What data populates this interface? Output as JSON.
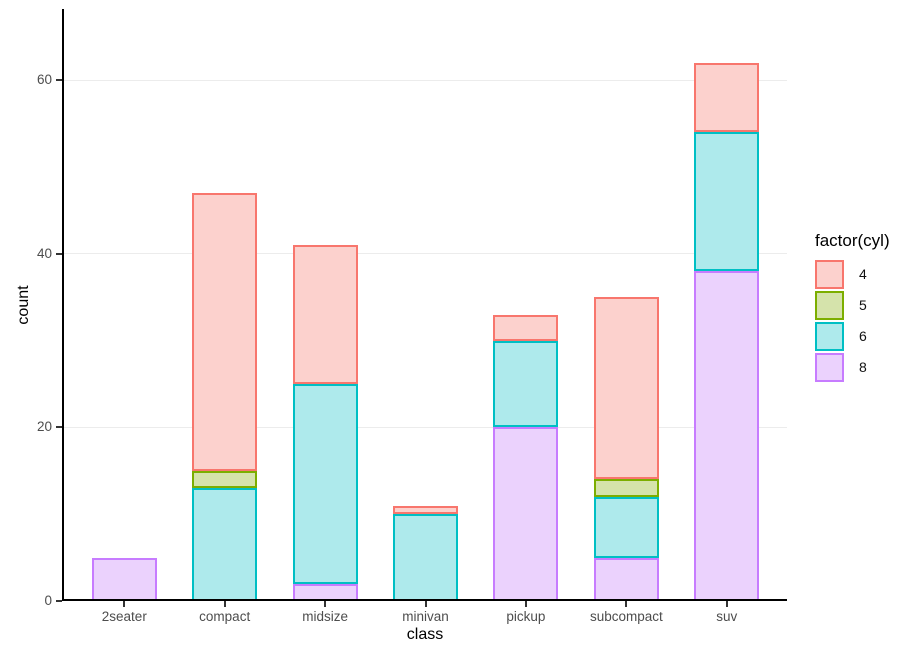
{
  "chart_data": {
    "type": "bar",
    "stacked": true,
    "xlabel": "class",
    "ylabel": "count",
    "categories": [
      "2seater",
      "compact",
      "midsize",
      "minivan",
      "pickup",
      "subcompact",
      "suv"
    ],
    "series": [
      {
        "name": "8",
        "values": [
          5,
          0,
          2,
          0,
          20,
          5,
          38
        ],
        "fill": "#ebd2fd",
        "stroke": "#c77cff"
      },
      {
        "name": "6",
        "values": [
          0,
          13,
          23,
          10,
          10,
          7,
          16
        ],
        "fill": "#aeeaec",
        "stroke": "#00bfc4"
      },
      {
        "name": "5",
        "values": [
          0,
          2,
          0,
          0,
          0,
          2,
          0
        ],
        "fill": "#d5e3ab",
        "stroke": "#7cae00"
      },
      {
        "name": "4",
        "values": [
          0,
          32,
          16,
          1,
          3,
          21,
          8
        ],
        "fill": "#fcd1cd",
        "stroke": "#f8766d"
      }
    ],
    "totals": [
      5,
      47,
      41,
      11,
      33,
      35,
      62
    ],
    "y_ticks": [
      0,
      20,
      40,
      60
    ],
    "ylim": [
      0,
      68.2
    ],
    "grid": "horizontal-major",
    "legend": {
      "title": "factor(cyl)",
      "position": "right",
      "entries": [
        "4",
        "5",
        "6",
        "8"
      ]
    },
    "colors": {
      "grid": "#ececec",
      "axis_text": "#4d4d4d",
      "axis_line": "#000000"
    }
  }
}
